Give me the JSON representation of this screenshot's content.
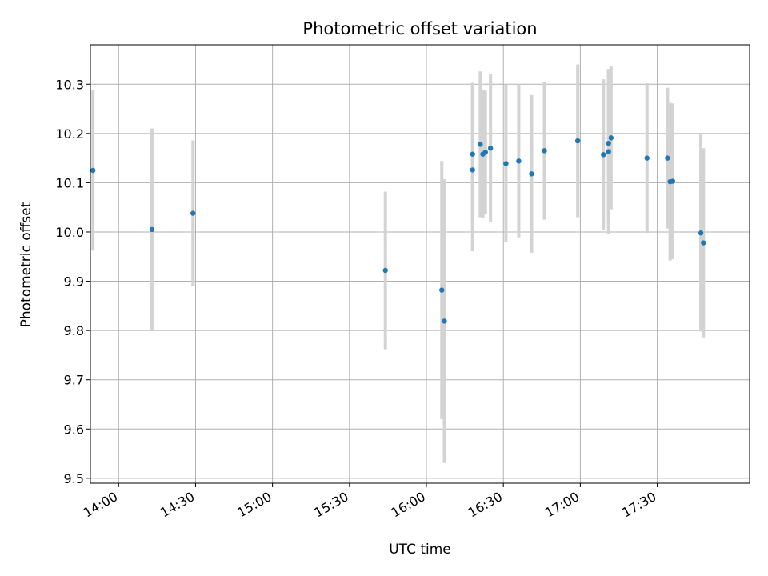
{
  "chart_data": {
    "type": "scatter",
    "title": "Photometric offset variation",
    "xlabel": "UTC time",
    "ylabel": "Photometric offset",
    "xlim": [
      "13:49:00",
      "18:06:00"
    ],
    "ylim": [
      9.49,
      10.38
    ],
    "x_ticks": [
      "14:00",
      "14:30",
      "15:00",
      "15:30",
      "16:00",
      "16:30",
      "17:00",
      "17:30"
    ],
    "y_ticks": [
      9.5,
      9.6,
      9.7,
      9.8,
      9.9,
      10.0,
      10.1,
      10.2,
      10.3
    ],
    "y_tick_labels": [
      "9.5",
      "9.6",
      "9.7",
      "9.8",
      "9.9",
      "10.0",
      "10.1",
      "10.2",
      "10.3"
    ],
    "grid": true,
    "point_color": "#1f77b4",
    "errorbar_color": "#d3d3d3",
    "points": [
      {
        "t": "13:50",
        "y": 10.125,
        "err": 0.163
      },
      {
        "t": "14:13",
        "y": 10.005,
        "err": 0.205
      },
      {
        "t": "14:29",
        "y": 10.038,
        "err": 0.148
      },
      {
        "t": "15:44",
        "y": 9.922,
        "err": 0.16
      },
      {
        "t": "16:06",
        "y": 9.882,
        "err": 0.262
      },
      {
        "t": "16:07",
        "y": 9.819,
        "err": 0.288
      },
      {
        "t": "16:18",
        "y": 10.158,
        "err": 0.145
      },
      {
        "t": "16:18",
        "y": 10.126,
        "err": 0.165
      },
      {
        "t": "16:21",
        "y": 10.178,
        "err": 0.148
      },
      {
        "t": "16:22",
        "y": 10.158,
        "err": 0.13
      },
      {
        "t": "16:23",
        "y": 10.162,
        "err": 0.125
      },
      {
        "t": "16:25",
        "y": 10.17,
        "err": 0.15
      },
      {
        "t": "16:31",
        "y": 10.139,
        "err": 0.16
      },
      {
        "t": "16:36",
        "y": 10.144,
        "err": 0.155
      },
      {
        "t": "16:41",
        "y": 10.118,
        "err": 0.16
      },
      {
        "t": "16:46",
        "y": 10.165,
        "err": 0.14
      },
      {
        "t": "16:59",
        "y": 10.185,
        "err": 0.155
      },
      {
        "t": "17:09",
        "y": 10.157,
        "err": 0.153
      },
      {
        "t": "17:11",
        "y": 10.163,
        "err": 0.168
      },
      {
        "t": "17:11",
        "y": 10.18,
        "err": 0.15
      },
      {
        "t": "17:12",
        "y": 10.191,
        "err": 0.145
      },
      {
        "t": "17:26",
        "y": 10.15,
        "err": 0.152
      },
      {
        "t": "17:34",
        "y": 10.15,
        "err": 0.143
      },
      {
        "t": "17:35",
        "y": 10.102,
        "err": 0.16
      },
      {
        "t": "17:36",
        "y": 10.103,
        "err": 0.158
      },
      {
        "t": "17:47",
        "y": 9.998,
        "err": 0.2
      },
      {
        "t": "17:48",
        "y": 9.978,
        "err": 0.192
      }
    ]
  }
}
